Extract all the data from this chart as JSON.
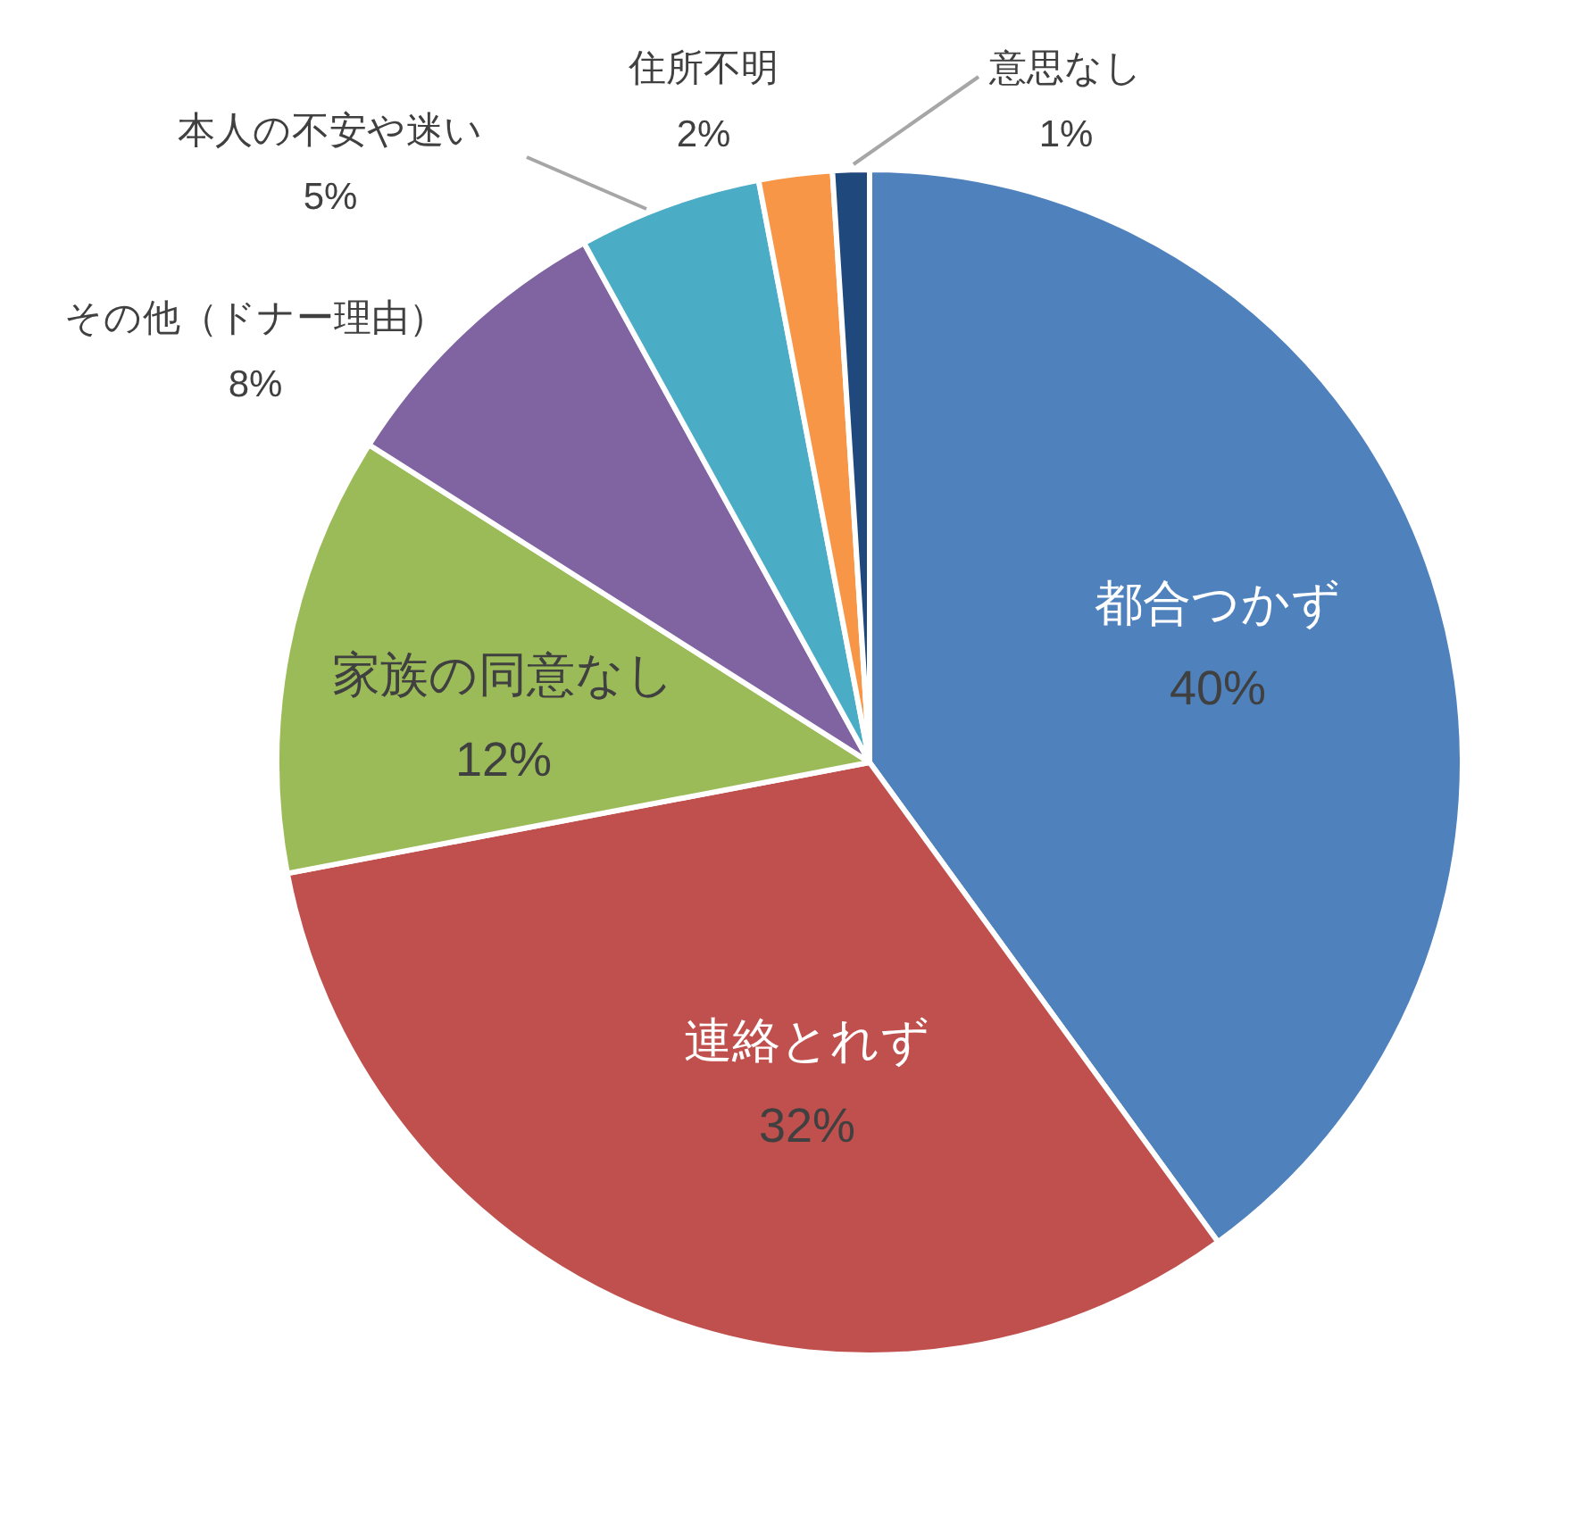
{
  "chart_data": {
    "type": "pie",
    "categories": [
      "都合つかず",
      "連絡とれず",
      "家族の同意なし",
      "その他（ドナー理由）",
      "本人の不安や迷い",
      "住所不明",
      "意思なし"
    ],
    "values": [
      40,
      32,
      12,
      8,
      5,
      2,
      1
    ],
    "colors": [
      "#4f81bd",
      "#c0504d",
      "#9bbb59",
      "#8064a2",
      "#4bacc6",
      "#f79646",
      "#1f497d"
    ],
    "value_labels": [
      "40%",
      "32%",
      "12%",
      "8%",
      "5%",
      "2%",
      "1%"
    ],
    "legend": false
  }
}
